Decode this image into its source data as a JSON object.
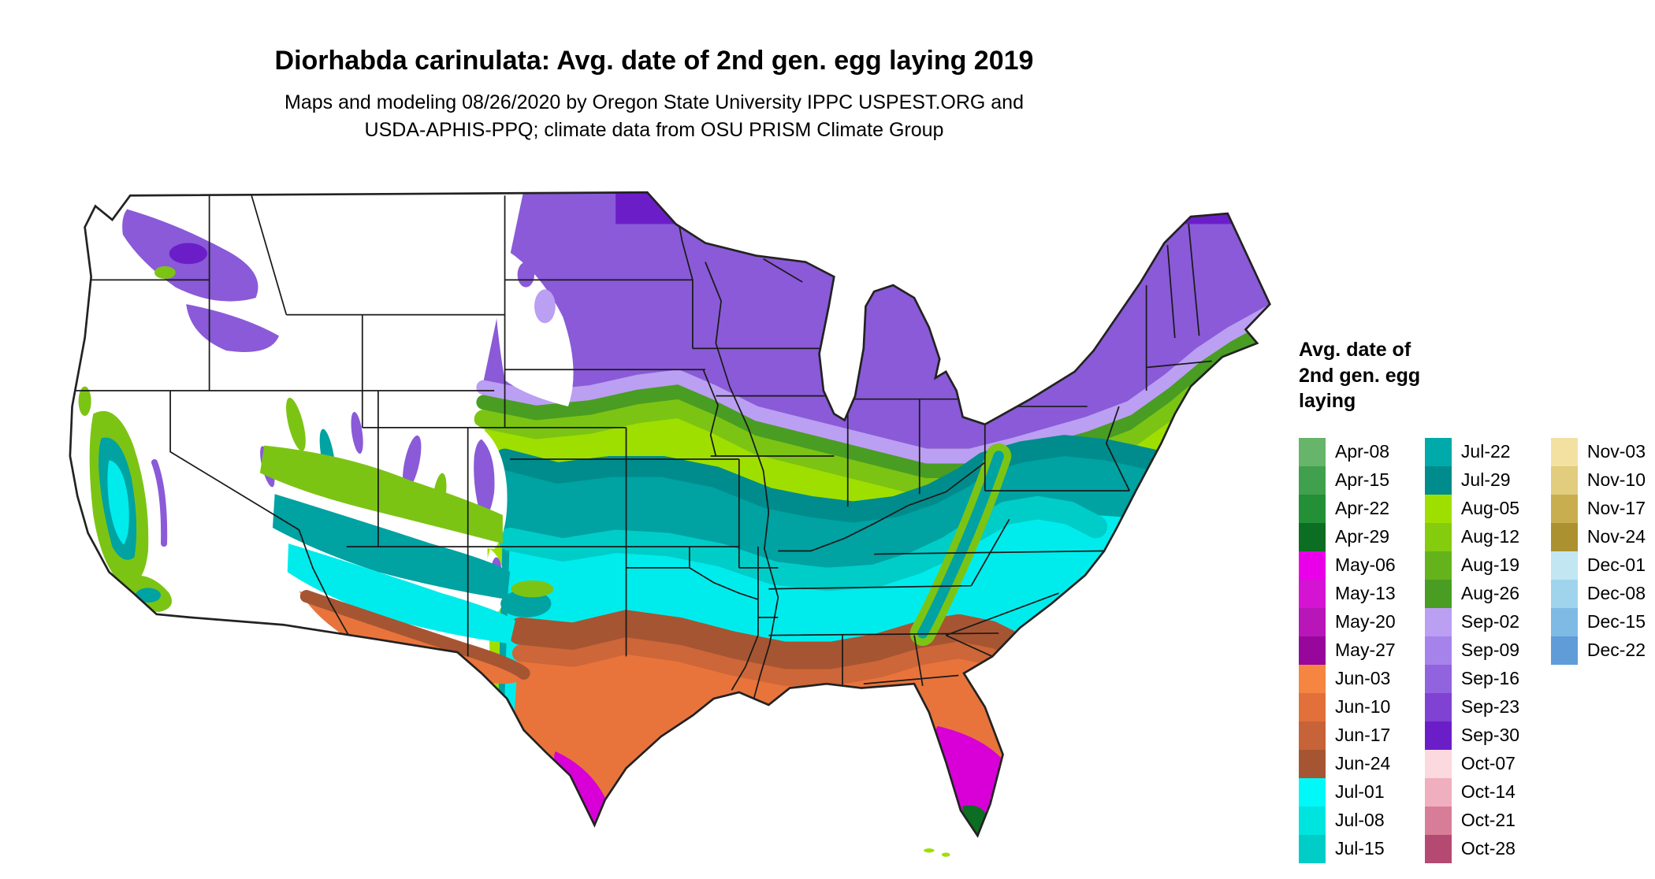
{
  "header": {
    "title": "Diorhabda carinulata: Avg. date of 2nd gen. egg laying 2019",
    "subtitle_line1": "Maps and modeling 08/26/2020 by Oregon State University IPPC USPEST.ORG and",
    "subtitle_line2": "USDA-APHIS-PPQ; climate data from OSU PRISM Climate Group"
  },
  "legend": {
    "title_lines": [
      "Avg. date of",
      "2nd gen. egg",
      "laying"
    ],
    "columns": [
      {
        "entries": [
          {
            "label": "Apr-08",
            "color": "#66b56a"
          },
          {
            "label": "Apr-15",
            "color": "#41a04d"
          },
          {
            "label": "Apr-22",
            "color": "#238f37"
          },
          {
            "label": "Apr-29",
            "color": "#0b6e22"
          },
          {
            "label": "May-06",
            "color": "#ea00e8"
          },
          {
            "label": "May-13",
            "color": "#d414d2"
          },
          {
            "label": "May-20",
            "color": "#b816b8"
          },
          {
            "label": "May-27",
            "color": "#97079c"
          },
          {
            "label": "Jun-03",
            "color": "#f58540"
          },
          {
            "label": "Jun-10",
            "color": "#e2703a"
          },
          {
            "label": "Jun-17",
            "color": "#c76338"
          },
          {
            "label": "Jun-24",
            "color": "#a65532"
          },
          {
            "label": "Jul-01",
            "color": "#00f8f8"
          },
          {
            "label": "Jul-08",
            "color": "#00e4e0"
          },
          {
            "label": "Jul-15",
            "color": "#00cdc8"
          }
        ]
      },
      {
        "entries": [
          {
            "label": "Jul-22",
            "color": "#00aaaa"
          },
          {
            "label": "Jul-29",
            "color": "#008c8c"
          },
          {
            "label": "Aug-05",
            "color": "#9fdf00"
          },
          {
            "label": "Aug-12",
            "color": "#85cb0e"
          },
          {
            "label": "Aug-19",
            "color": "#64b31c"
          },
          {
            "label": "Aug-26",
            "color": "#499d22"
          },
          {
            "label": "Sep-02",
            "color": "#bb9ff2"
          },
          {
            "label": "Sep-09",
            "color": "#a683ea"
          },
          {
            "label": "Sep-16",
            "color": "#9263de"
          },
          {
            "label": "Sep-23",
            "color": "#7f42d2"
          },
          {
            "label": "Sep-30",
            "color": "#6b1ec8"
          },
          {
            "label": "Oct-07",
            "color": "#fbd9de"
          },
          {
            "label": "Oct-14",
            "color": "#f0afbe"
          },
          {
            "label": "Oct-21",
            "color": "#d87d98"
          },
          {
            "label": "Oct-28",
            "color": "#b44a72"
          }
        ]
      },
      {
        "entries": [
          {
            "label": "Nov-03",
            "color": "#f3e1a2"
          },
          {
            "label": "Nov-10",
            "color": "#e2cd7e"
          },
          {
            "label": "Nov-17",
            "color": "#c9ae50"
          },
          {
            "label": "Nov-24",
            "color": "#ab9130"
          },
          {
            "label": "Dec-01",
            "color": "#c2e6f2"
          },
          {
            "label": "Dec-08",
            "color": "#a0d4ec"
          },
          {
            "label": "Dec-15",
            "color": "#7fbae4"
          },
          {
            "label": "Dec-22",
            "color": "#5f9cd8"
          }
        ]
      }
    ]
  },
  "map": {
    "map_palette": {
      "white": "#ffffff",
      "sep_dark": "#6b1ec8",
      "sep_mid": "#8a5ad8",
      "sep_light": "#bb9ff2",
      "aug_dark": "#499d22",
      "aug_mid": "#7cc414",
      "aug_bright": "#9fdf00",
      "teal_dark": "#008c8c",
      "teal": "#00a2a2",
      "cyan_mid": "#00cdc8",
      "cyan": "#00ecec",
      "brown": "#a65532",
      "orange_mid": "#cd6638",
      "orange": "#e8743c",
      "orange_bright": "#f58540",
      "magenta": "#d800d6",
      "apr_green": "#0b6e22",
      "state_border": "#1a1a1a",
      "outline": "#222222"
    }
  }
}
